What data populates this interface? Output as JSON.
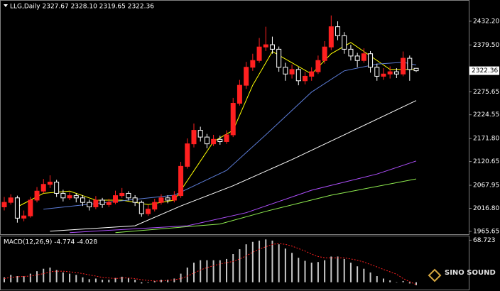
{
  "chart_data": [
    {
      "type": "candlestick",
      "title": "LLG,Daily 2327.67 2328.10 2319.65 2322.36",
      "up_color": "#ff2020",
      "down_color": "#ffffff",
      "open": [
        2020,
        2030,
        2040,
        1995,
        2000,
        2035,
        2055,
        2070,
        2075,
        2050,
        2040,
        2045,
        2040,
        2030,
        2020,
        2035,
        2025,
        2030,
        2045,
        2050,
        2040,
        2030,
        2005,
        2015,
        2030,
        2040,
        2035,
        2045,
        2110,
        2160,
        2190,
        2175,
        2160,
        2170,
        2165,
        2180,
        2250,
        2290,
        2330,
        2345,
        2375,
        2380,
        2370,
        2330,
        2315,
        2325,
        2300,
        2310,
        2320,
        2345,
        2375,
        2420,
        2400,
        2370,
        2355,
        2345,
        2360,
        2330,
        2310,
        2315,
        2320,
        2315,
        2350,
        2327.67
      ],
      "high": [
        2042,
        2048,
        2045,
        2012,
        2042,
        2064,
        2082,
        2090,
        2080,
        2058,
        2052,
        2050,
        2046,
        2036,
        2044,
        2040,
        2038,
        2056,
        2062,
        2055,
        2046,
        2034,
        2024,
        2038,
        2048,
        2046,
        2055,
        2120,
        2172,
        2205,
        2198,
        2182,
        2180,
        2178,
        2190,
        2262,
        2302,
        2342,
        2360,
        2395,
        2420,
        2398,
        2376,
        2340,
        2336,
        2330,
        2320,
        2330,
        2356,
        2388,
        2445,
        2432,
        2408,
        2380,
        2362,
        2372,
        2366,
        2338,
        2328,
        2332,
        2328,
        2365,
        2356,
        2328.1
      ],
      "low": [
        2012,
        2025,
        1985,
        1988,
        1996,
        2030,
        2050,
        2062,
        2042,
        2032,
        2035,
        2030,
        2022,
        2012,
        2015,
        2018,
        2020,
        2026,
        2040,
        2034,
        2022,
        1998,
        2000,
        2010,
        2025,
        2028,
        2030,
        2040,
        2105,
        2152,
        2165,
        2150,
        2155,
        2158,
        2160,
        2175,
        2245,
        2282,
        2322,
        2340,
        2366,
        2360,
        2320,
        2300,
        2305,
        2290,
        2292,
        2300,
        2315,
        2338,
        2368,
        2390,
        2360,
        2345,
        2330,
        2340,
        2318,
        2300,
        2302,
        2305,
        2306,
        2310,
        2300,
        2319.65
      ],
      "close": [
        2030,
        2040,
        1995,
        2000,
        2035,
        2055,
        2070,
        2075,
        2050,
        2040,
        2045,
        2040,
        2030,
        2020,
        2035,
        2025,
        2030,
        2045,
        2050,
        2040,
        2030,
        2005,
        2015,
        2030,
        2040,
        2035,
        2045,
        2110,
        2160,
        2190,
        2175,
        2160,
        2170,
        2165,
        2180,
        2250,
        2290,
        2330,
        2345,
        2375,
        2380,
        2370,
        2330,
        2315,
        2325,
        2300,
        2310,
        2320,
        2345,
        2375,
        2420,
        2400,
        2370,
        2355,
        2345,
        2360,
        2330,
        2310,
        2315,
        2320,
        2315,
        2350,
        2325,
        2322.36
      ],
      "moving_averages": [
        {
          "color": "#ffff00",
          "x": [
            2,
            6,
            10,
            14,
            18,
            22,
            26,
            29,
            32,
            35,
            38,
            41,
            44,
            47,
            50,
            53,
            56,
            59,
            63
          ],
          "values": [
            2020,
            2050,
            2055,
            2035,
            2035,
            2025,
            2035,
            2100,
            2165,
            2190,
            2290,
            2365,
            2340,
            2315,
            2360,
            2385,
            2355,
            2325,
            2325
          ]
        },
        {
          "color": "#5b7bd5",
          "x": [
            6,
            26,
            34,
            40,
            47,
            52,
            57,
            61,
            63
          ],
          "values": [
            2015,
            2046,
            2101,
            2180,
            2275,
            2322,
            2337,
            2341,
            2335
          ]
        },
        {
          "color": "#ffffff",
          "x": [
            7,
            20,
            27,
            35,
            44,
            52,
            63
          ],
          "values": [
            1966,
            1978,
            2022,
            2067,
            2125,
            2180,
            2256
          ]
        },
        {
          "color": "#b050ff",
          "x": [
            10,
            28,
            37,
            47,
            57,
            63
          ],
          "values": [
            1963,
            1978,
            2007,
            2057,
            2093,
            2122
          ]
        },
        {
          "color": "#90ee50",
          "x": [
            17,
            33,
            40,
            50,
            63
          ],
          "values": [
            1963,
            1982,
            2010,
            2046,
            2082
          ]
        }
      ],
      "ylim": [
        1959.3,
        2474.6
      ],
      "yticks": [
        {
          "value": 2432.2,
          "label": "2432.20"
        },
        {
          "value": 2379.5,
          "label": "2379.50"
        },
        2275.65,
        2224.55,
        {
          "value": 2171.8,
          "label": "2171.80"
        },
        2120.65,
        2067.95,
        {
          "value": 2016.8,
          "label": "2016.80"
        },
        1965.65
      ]
    },
    {
      "type": "bar",
      "title": "MACD(12,26,9) -4.774 -4.028",
      "color": "#c8c8c8",
      "signal_color": "#ff2020",
      "values": [
        8,
        12,
        10,
        10,
        14,
        18,
        22,
        24,
        20,
        16,
        14,
        12,
        8,
        5,
        6,
        4,
        4,
        7,
        9,
        7,
        4,
        -2,
        -1,
        2,
        4,
        4,
        6,
        14,
        24,
        32,
        36,
        36,
        36,
        36,
        38,
        46,
        54,
        62,
        66,
        68,
        70,
        68,
        62,
        55,
        48,
        40,
        35,
        32,
        33,
        36,
        42,
        42,
        38,
        32,
        26,
        22,
        16,
        10,
        6,
        3,
        0,
        2,
        -2,
        -4.774
      ],
      "signal": [
        6,
        8,
        9,
        9.5,
        10,
        12,
        14,
        17,
        18,
        18,
        17,
        16,
        14,
        12,
        10,
        8,
        7,
        6,
        7,
        7,
        6,
        4,
        3,
        2,
        2,
        3,
        4,
        6,
        10,
        15,
        20,
        24,
        27,
        30,
        32,
        34,
        38,
        43,
        49,
        54,
        58,
        62,
        63,
        62,
        59,
        55,
        51,
        46,
        42,
        40,
        40,
        40,
        40,
        38,
        36,
        33,
        29,
        25,
        21,
        17,
        13,
        6,
        1,
        -4.028
      ],
      "ylim": [
        -12,
        75
      ],
      "yticks": [
        68.723
      ]
    }
  ],
  "logo": "SINO SOUND"
}
